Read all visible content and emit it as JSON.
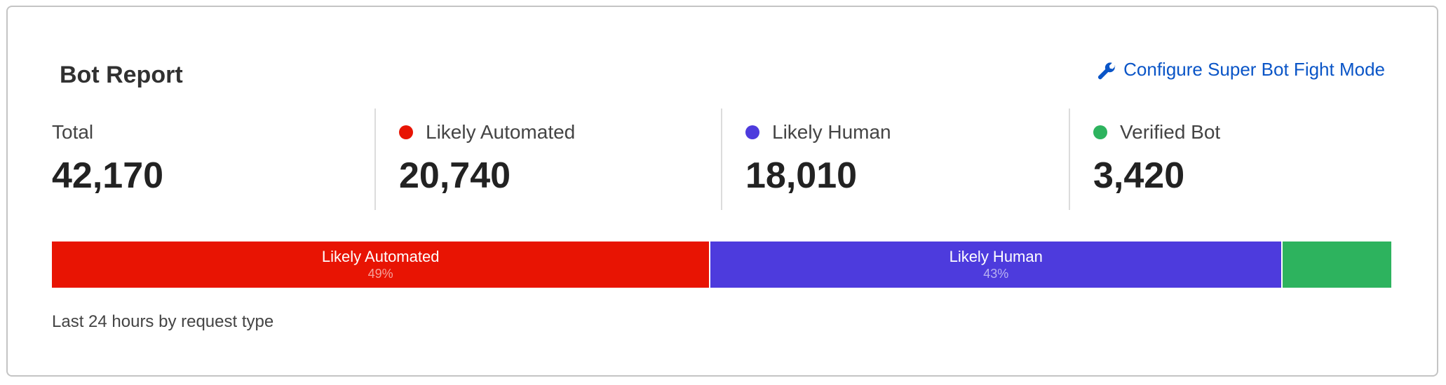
{
  "card": {
    "title": "Bot Report",
    "configure_link": {
      "label": "Configure Super Bot Fight Mode",
      "icon": "wrench-icon",
      "color": "#0a55c7"
    },
    "footer": "Last 24 hours by request type"
  },
  "stats": [
    {
      "label": "Total",
      "value": "42,170"
    },
    {
      "label": "Likely Automated",
      "value": "20,740",
      "color": "#e81403"
    },
    {
      "label": "Likely Human",
      "value": "18,010",
      "color": "#4d3bdd"
    },
    {
      "label": "Verified Bot",
      "value": "3,420",
      "color": "#2db35e"
    }
  ],
  "chart_data": {
    "type": "bar",
    "orientation": "horizontal-stacked",
    "total": 42170,
    "categories": [
      "Likely Automated",
      "Likely Human",
      "Verified Bot"
    ],
    "values": [
      20740,
      18010,
      3420
    ],
    "percent_labels": [
      "49%",
      "43%",
      ""
    ],
    "segment_labels": [
      "Likely Automated",
      "Likely Human",
      ""
    ],
    "colors": [
      "#e81403",
      "#4d3bdd",
      "#2db35e"
    ]
  }
}
